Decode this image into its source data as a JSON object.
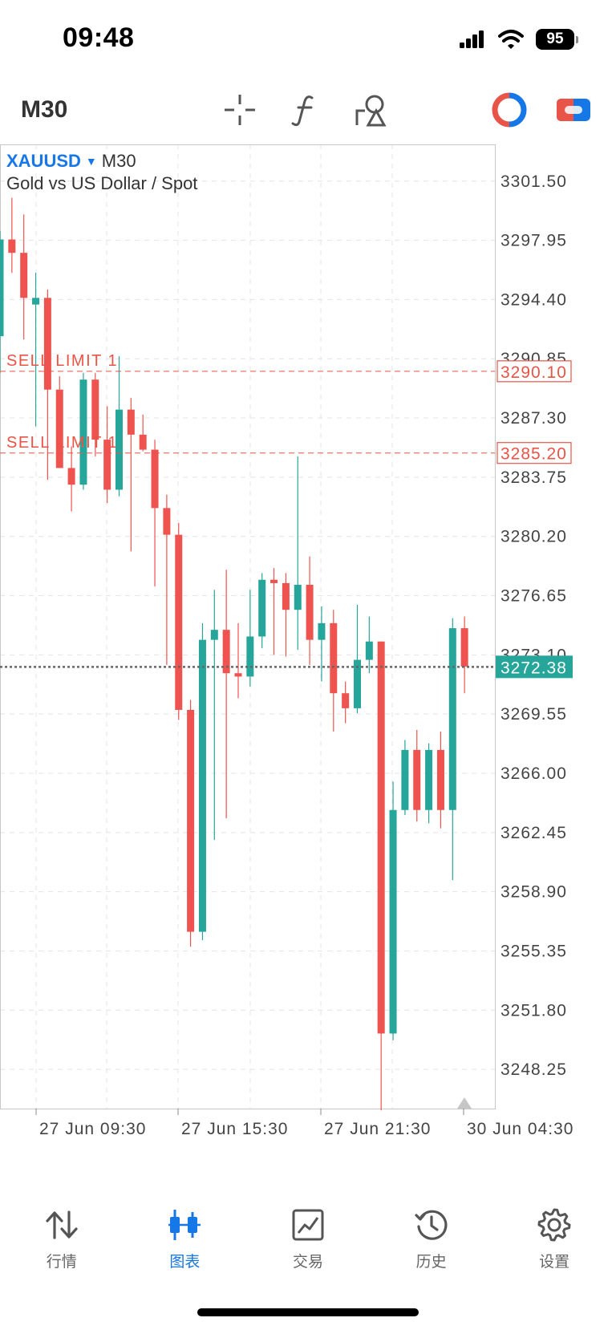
{
  "status": {
    "time": "09:48",
    "battery": "95"
  },
  "toolbar": {
    "timeframe": "M30"
  },
  "symbol": {
    "name": "XAUUSD",
    "timeframe": "M30",
    "description": "Gold vs US Dollar / Spot"
  },
  "orders": [
    {
      "label": "SELL LIMIT 1",
      "price": 3290.1,
      "price_text": "3290.10"
    },
    {
      "label": "SELL LIMIT 1",
      "price": 3285.2,
      "price_text": "3285.20"
    }
  ],
  "current_price": {
    "value": 3272.38,
    "text": "3272.38"
  },
  "chart_data": {
    "type": "candlestick",
    "ylim": [
      3245.9,
      3303.7
    ],
    "y_ticks": [
      "3301.50",
      "3297.95",
      "3294.40",
      "3290.85",
      "3287.30",
      "3283.75",
      "3280.20",
      "3276.65",
      "3273.10",
      "3269.55",
      "3266.00",
      "3262.45",
      "3258.90",
      "3255.35",
      "3251.80",
      "3248.25"
    ],
    "x_ticks": [
      "27 Jun 09:30",
      "27 Jun 15:30",
      "27 Jun 21:30",
      "30 Jun 04:30"
    ],
    "candles": [
      {
        "o": 3292.2,
        "h": 3298.5,
        "l": 3290.0,
        "c": 3298.0
      },
      {
        "o": 3298.0,
        "h": 3300.5,
        "l": 3296.0,
        "c": 3297.2
      },
      {
        "o": 3297.2,
        "h": 3299.5,
        "l": 3292.0,
        "c": 3294.5
      },
      {
        "o": 3294.1,
        "h": 3296.0,
        "l": 3286.8,
        "c": 3294.5
      },
      {
        "o": 3294.5,
        "h": 3295.0,
        "l": 3283.6,
        "c": 3289.0
      },
      {
        "o": 3289.0,
        "h": 3289.8,
        "l": 3284.5,
        "c": 3284.3
      },
      {
        "o": 3284.3,
        "h": 3285.6,
        "l": 3281.7,
        "c": 3283.3
      },
      {
        "o": 3283.3,
        "h": 3290.0,
        "l": 3283.0,
        "c": 3289.6
      },
      {
        "o": 3289.6,
        "h": 3290.0,
        "l": 3285.0,
        "c": 3286.0
      },
      {
        "o": 3286.0,
        "h": 3288.0,
        "l": 3282.2,
        "c": 3283.0
      },
      {
        "o": 3283.0,
        "h": 3291.0,
        "l": 3282.6,
        "c": 3287.8
      },
      {
        "o": 3287.8,
        "h": 3288.5,
        "l": 3279.3,
        "c": 3286.3
      },
      {
        "o": 3286.3,
        "h": 3287.5,
        "l": 3285.3,
        "c": 3285.4
      },
      {
        "o": 3285.4,
        "h": 3286.0,
        "l": 3277.2,
        "c": 3281.9
      },
      {
        "o": 3281.9,
        "h": 3282.7,
        "l": 3272.5,
        "c": 3280.3
      },
      {
        "o": 3280.3,
        "h": 3281.0,
        "l": 3269.2,
        "c": 3269.8
      },
      {
        "o": 3269.8,
        "h": 3270.4,
        "l": 3255.6,
        "c": 3256.5
      },
      {
        "o": 3256.5,
        "h": 3275.0,
        "l": 3256.0,
        "c": 3274.0
      },
      {
        "o": 3274.0,
        "h": 3277.0,
        "l": 3262.0,
        "c": 3274.6
      },
      {
        "o": 3274.6,
        "h": 3278.2,
        "l": 3263.3,
        "c": 3272.0
      },
      {
        "o": 3272.0,
        "h": 3275.0,
        "l": 3270.5,
        "c": 3271.8
      },
      {
        "o": 3271.8,
        "h": 3277.0,
        "l": 3271.2,
        "c": 3274.2
      },
      {
        "o": 3274.2,
        "h": 3278.0,
        "l": 3273.5,
        "c": 3277.6
      },
      {
        "o": 3277.6,
        "h": 3278.3,
        "l": 3273.1,
        "c": 3277.4
      },
      {
        "o": 3277.4,
        "h": 3278.0,
        "l": 3273.0,
        "c": 3275.8
      },
      {
        "o": 3275.8,
        "h": 3285.0,
        "l": 3273.4,
        "c": 3277.3
      },
      {
        "o": 3277.3,
        "h": 3279.0,
        "l": 3272.5,
        "c": 3274.0
      },
      {
        "o": 3274.0,
        "h": 3276.0,
        "l": 3271.5,
        "c": 3275.0
      },
      {
        "o": 3275.0,
        "h": 3275.8,
        "l": 3268.5,
        "c": 3270.8
      },
      {
        "o": 3270.8,
        "h": 3271.5,
        "l": 3269.0,
        "c": 3269.9
      },
      {
        "o": 3269.9,
        "h": 3276.1,
        "l": 3269.6,
        "c": 3272.8
      },
      {
        "o": 3272.8,
        "h": 3275.4,
        "l": 3272.0,
        "c": 3273.9
      },
      {
        "o": 3273.9,
        "h": 3273.5,
        "l": 3245.8,
        "c": 3250.4
      },
      {
        "o": 3250.4,
        "h": 3265.5,
        "l": 3250.0,
        "c": 3263.8
      },
      {
        "o": 3263.8,
        "h": 3268.0,
        "l": 3263.5,
        "c": 3267.4
      },
      {
        "o": 3267.4,
        "h": 3268.6,
        "l": 3263.1,
        "c": 3263.8
      },
      {
        "o": 3263.8,
        "h": 3267.8,
        "l": 3263.0,
        "c": 3267.4
      },
      {
        "o": 3267.4,
        "h": 3268.5,
        "l": 3262.7,
        "c": 3263.8
      },
      {
        "o": 3263.8,
        "h": 3275.3,
        "l": 3259.6,
        "c": 3274.7
      },
      {
        "o": 3274.7,
        "h": 3275.4,
        "l": 3270.8,
        "c": 3272.4
      }
    ]
  },
  "tabs": [
    {
      "label": "行情",
      "icon": "quotes-arrows-icon",
      "active": false
    },
    {
      "label": "图表",
      "icon": "candlestick-chart-icon",
      "active": true
    },
    {
      "label": "交易",
      "icon": "trade-chart-icon",
      "active": false
    },
    {
      "label": "历史",
      "icon": "history-clock-icon",
      "active": false
    },
    {
      "label": "设置",
      "icon": "gear-icon",
      "active": false
    }
  ],
  "colors": {
    "bull": "#26a69a",
    "bear": "#ef5350",
    "accent": "#1677e6",
    "order_line": "#e85447",
    "current_price_bg": "#26a69a"
  }
}
